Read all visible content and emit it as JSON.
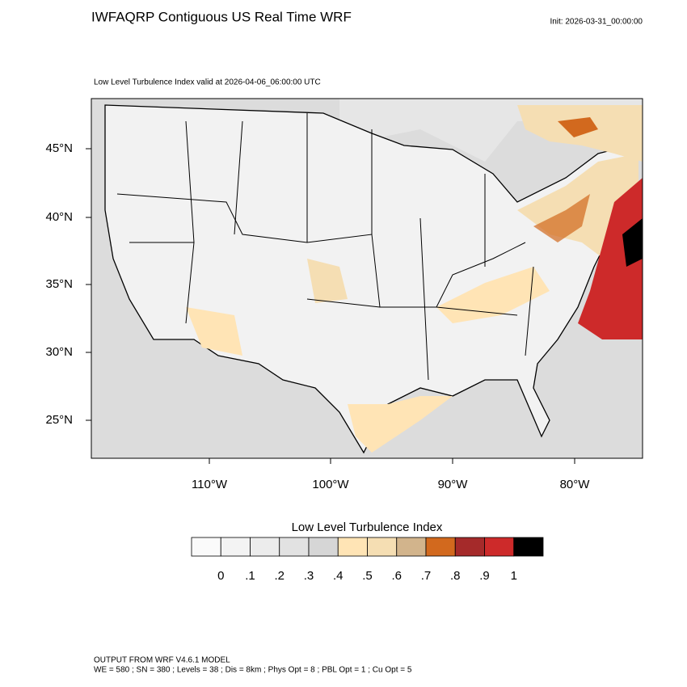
{
  "header": {
    "title": "IWFAQRP Contiguous US Real Time WRF",
    "init": "Init: 2026-03-31_00:00:00"
  },
  "map": {
    "subtitle": "Low Level Turbulence Index valid at 2026-04-06_06:00:00 UTC",
    "lat_labels": [
      "45°N",
      "40°N",
      "35°N",
      "30°N",
      "25°N"
    ],
    "lon_labels": [
      "110°W",
      "100°W",
      "90°W",
      "80°W"
    ]
  },
  "legend": {
    "title": "Low Level Turbulence Index",
    "colors": [
      "#fafafa",
      "#f3f3f3",
      "#ececec",
      "#e2e2e2",
      "#d6d6d6",
      "#ffe4b5",
      "#f5deb3",
      "#d2b48c",
      "#d2691e",
      "#a52a2a",
      "#cd2a2a",
      "#000000"
    ],
    "labels": [
      "0",
      ".1",
      ".2",
      ".3",
      ".4",
      ".5",
      ".6",
      ".7",
      ".8",
      ".9",
      "1"
    ]
  },
  "footer": {
    "model": "OUTPUT FROM WRF V4.6.1 MODEL",
    "settings": "WE = 580 ; SN = 380 ; Levels = 38 ; Dis = 8km ; Phys Opt = 8 ; PBL Opt = 1 ; Cu Opt = 5"
  }
}
